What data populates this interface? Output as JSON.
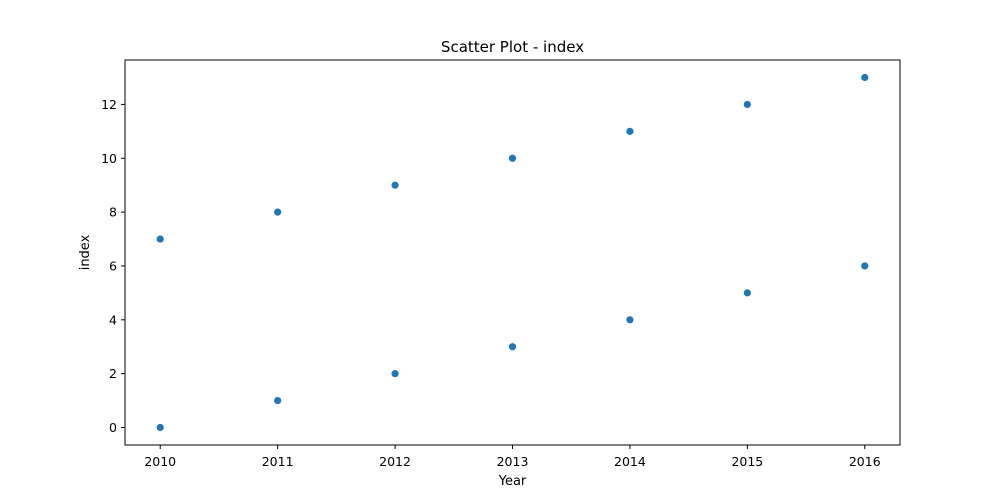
{
  "chart_data": {
    "type": "scatter",
    "title": "Scatter Plot - index",
    "xlabel": "Year",
    "ylabel": "index",
    "xlim": [
      2009.7,
      2016.3
    ],
    "ylim": [
      -0.65,
      13.65
    ],
    "xticks": [
      2010,
      2011,
      2012,
      2013,
      2014,
      2015,
      2016
    ],
    "yticks": [
      0,
      2,
      4,
      6,
      8,
      10,
      12
    ],
    "grid": false,
    "marker_color": "#1f77b4",
    "points": [
      {
        "x": 2010,
        "y": 0
      },
      {
        "x": 2011,
        "y": 1
      },
      {
        "x": 2012,
        "y": 2
      },
      {
        "x": 2013,
        "y": 3
      },
      {
        "x": 2014,
        "y": 4
      },
      {
        "x": 2015,
        "y": 5
      },
      {
        "x": 2016,
        "y": 6
      },
      {
        "x": 2010,
        "y": 7
      },
      {
        "x": 2011,
        "y": 8
      },
      {
        "x": 2012,
        "y": 9
      },
      {
        "x": 2013,
        "y": 10
      },
      {
        "x": 2014,
        "y": 11
      },
      {
        "x": 2015,
        "y": 12
      },
      {
        "x": 2016,
        "y": 13
      }
    ]
  }
}
